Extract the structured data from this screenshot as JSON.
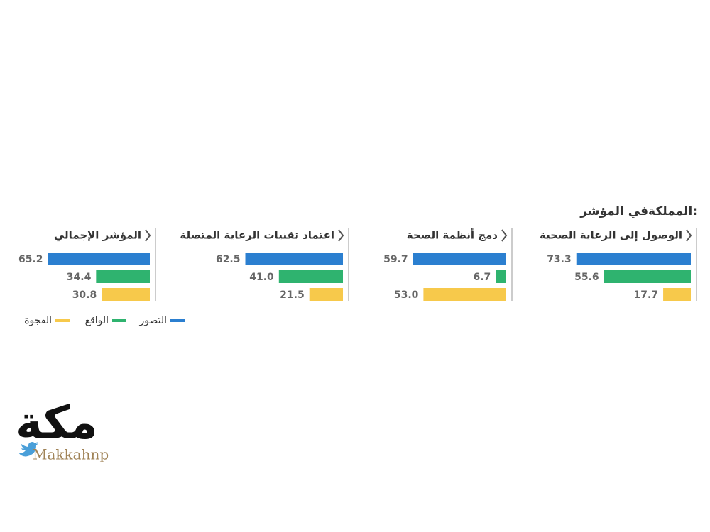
{
  "title": "المملكةفي المؤشر:",
  "chart_data": {
    "type": "bar",
    "categories": [
      "الوصول إلى الرعاية الصحية",
      "دمج أنظمة الصحة",
      "اعتماد تقنيات الرعاية المتصلة",
      "المؤشر الإجمالي"
    ],
    "series": [
      {
        "name": "التصور",
        "color": "#2b7fd0",
        "values": [
          73.3,
          59.7,
          62.5,
          65.2
        ],
        "value_labels": [
          "73.3",
          "59.7",
          "62.5",
          "65.2"
        ]
      },
      {
        "name": "الواقع",
        "color": "#2fb36f",
        "values": [
          55.6,
          6.7,
          41.0,
          34.4
        ],
        "value_labels": [
          "55.6",
          "6.7",
          "41.0",
          "34.4"
        ]
      },
      {
        "name": "الفجوة",
        "color": "#f7c94b",
        "values": [
          17.7,
          53.0,
          21.5,
          30.8
        ],
        "value_labels": [
          "17.7",
          "53.0",
          "21.5",
          "30.8"
        ]
      }
    ],
    "xlim": [
      0,
      100
    ]
  },
  "logo": {
    "text": "مكة",
    "handle": "Makkahnp"
  }
}
